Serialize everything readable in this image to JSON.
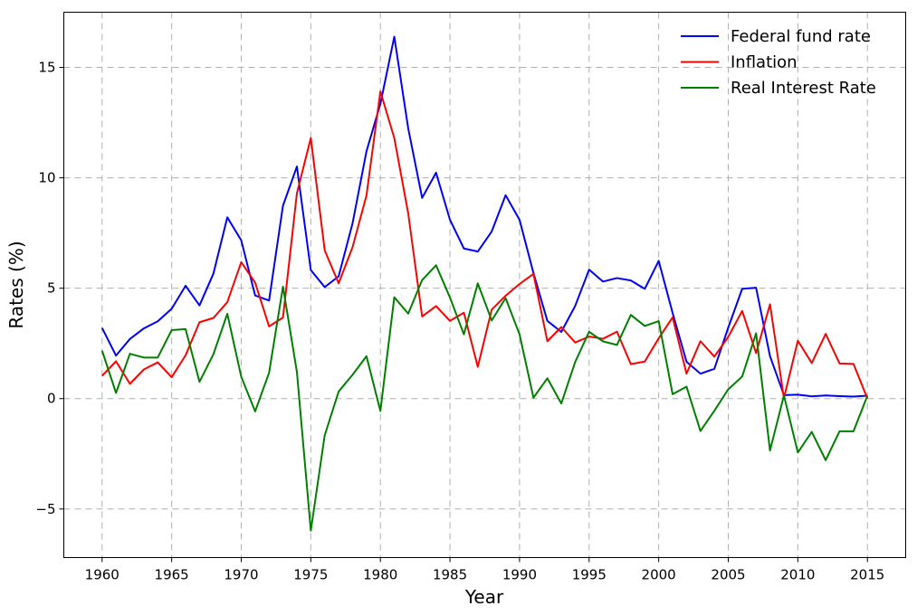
{
  "chart_data": {
    "type": "line",
    "xlabel": "Year",
    "ylabel": "Rates (%)",
    "xlim": [
      1957.25,
      1917.75
    ],
    "ylim": [
      -7.2,
      17.5
    ],
    "xticks": [
      1960,
      1965,
      1970,
      1975,
      1980,
      1985,
      1990,
      1995,
      2000,
      2005,
      2010,
      2015
    ],
    "xtick_labels": [
      "1960",
      "1965",
      "1970",
      "1975",
      "1980",
      "1985",
      "1990",
      "1995",
      "2000",
      "2005",
      "2010",
      "2015"
    ],
    "yticks": [
      -5,
      0,
      5,
      10,
      15
    ],
    "ytick_labels": [
      "−5",
      "0",
      "5",
      "10",
      "15"
    ],
    "grid": true,
    "legend_position": "top-right",
    "x": [
      1960,
      1961,
      1962,
      1963,
      1964,
      1965,
      1966,
      1967,
      1968,
      1969,
      1970,
      1971,
      1972,
      1973,
      1974,
      1975,
      1976,
      1977,
      1978,
      1979,
      1980,
      1981,
      1982,
      1983,
      1984,
      1985,
      1986,
      1987,
      1988,
      1989,
      1990,
      1991,
      1992,
      1993,
      1994,
      1995,
      1996,
      1997,
      1998,
      1999,
      2000,
      2001,
      2002,
      2003,
      2004,
      2005,
      2006,
      2007,
      2008,
      2009,
      2010,
      2011,
      2012,
      2013,
      2014,
      2015
    ],
    "series": [
      {
        "name": "Federal fund rate",
        "color": "#0000ff",
        "values": [
          3.2,
          1.95,
          2.7,
          3.18,
          3.5,
          4.07,
          5.11,
          4.22,
          5.66,
          8.21,
          7.17,
          4.67,
          4.44,
          8.74,
          10.51,
          5.82,
          5.05,
          5.54,
          7.94,
          11.2,
          13.35,
          16.39,
          12.24,
          9.09,
          10.23,
          8.1,
          6.8,
          6.66,
          7.57,
          9.21,
          8.1,
          5.69,
          3.52,
          3.02,
          4.2,
          5.84,
          5.3,
          5.46,
          5.35,
          4.97,
          6.24,
          3.88,
          1.67,
          1.13,
          1.35,
          3.22,
          4.97,
          5.02,
          1.92,
          0.16,
          0.18,
          0.1,
          0.14,
          0.11,
          0.09,
          0.13
        ]
      },
      {
        "name": "Inflation",
        "color": "#ff0000",
        "values": [
          1.03,
          1.69,
          0.67,
          1.32,
          1.64,
          0.97,
          1.96,
          3.46,
          3.65,
          4.37,
          6.18,
          5.25,
          3.27,
          3.67,
          9.3,
          11.8,
          6.71,
          5.22,
          6.86,
          9.2,
          13.91,
          11.8,
          8.39,
          3.72,
          4.19,
          3.52,
          3.89,
          1.44,
          4.03,
          4.66,
          5.19,
          5.65,
          2.6,
          3.24,
          2.54,
          2.81,
          2.71,
          3.03,
          1.56,
          1.68,
          2.73,
          3.68,
          1.13,
          2.6,
          1.9,
          2.8,
          3.97,
          2.06,
          4.27,
          0.02,
          2.62,
          1.61,
          2.93,
          1.59,
          1.57,
          0.0
        ]
      },
      {
        "name": "Real Interest Rate",
        "color": "#008000",
        "values": [
          2.17,
          0.26,
          2.03,
          1.86,
          1.86,
          3.1,
          3.15,
          0.76,
          2.01,
          3.84,
          0.99,
          -0.58,
          1.17,
          5.07,
          1.21,
          -5.98,
          -1.66,
          0.32,
          1.08,
          1.92,
          -0.56,
          4.59,
          3.85,
          5.37,
          6.04,
          4.58,
          2.91,
          5.22,
          3.54,
          4.55,
          2.91,
          0.04,
          0.92,
          -0.22,
          1.66,
          3.03,
          2.59,
          2.43,
          3.79,
          3.29,
          3.51,
          0.2,
          0.54,
          -1.47,
          -0.55,
          0.42,
          1.0,
          2.96,
          -2.35,
          0.14,
          -2.44,
          -1.51,
          -2.79,
          -1.48,
          -1.48,
          0.13
        ]
      }
    ]
  }
}
